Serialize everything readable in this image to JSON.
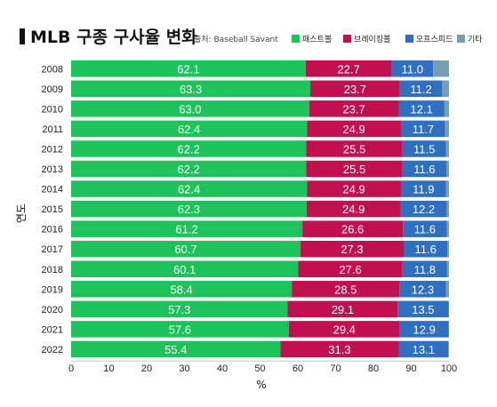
{
  "chart_data": {
    "type": "bar",
    "orientation": "horizontal",
    "stacked": true,
    "title": "MLB 구종 구사율 변화",
    "source": "출처: Baseball Savant",
    "ylabel": "연도",
    "xlabel": "%",
    "xlim": [
      0,
      100
    ],
    "xticks": [
      "0",
      "10",
      "20",
      "30",
      "40",
      "50",
      "60",
      "70",
      "80",
      "90",
      "100"
    ],
    "legend_position": "top-right",
    "categories": [
      "2008",
      "2009",
      "2010",
      "2011",
      "2012",
      "2013",
      "2014",
      "2015",
      "2016",
      "2017",
      "2018",
      "2019",
      "2020",
      "2021",
      "2022"
    ],
    "series": [
      {
        "name": "패스트볼",
        "color": "#1dc25a",
        "values": [
          62.1,
          63.3,
          63.0,
          62.4,
          62.2,
          62.2,
          62.4,
          62.3,
          61.2,
          60.7,
          60.1,
          58.4,
          57.3,
          57.6,
          55.4
        ],
        "labels": [
          "62.1",
          "63.3",
          "63.0",
          "62.4",
          "62.2",
          "62.2",
          "62.4",
          "62.3",
          "61.2",
          "60.7",
          "60.1",
          "58.4",
          "57.3",
          "57.6",
          "55.4"
        ]
      },
      {
        "name": "브레이킹볼",
        "color": "#c0104f",
        "values": [
          22.7,
          23.7,
          23.7,
          24.9,
          25.5,
          25.5,
          24.9,
          24.9,
          26.6,
          27.3,
          27.6,
          28.5,
          29.1,
          29.4,
          31.3
        ],
        "labels": [
          "22.7",
          "23.7",
          "23.7",
          "24.9",
          "25.5",
          "25.5",
          "24.9",
          "24.9",
          "26.6",
          "27.3",
          "27.6",
          "28.5",
          "29.1",
          "29.4",
          "31.3"
        ]
      },
      {
        "name": "오프스피드",
        "color": "#2f6fc0",
        "values": [
          11.0,
          11.2,
          12.1,
          11.7,
          11.5,
          11.6,
          11.9,
          12.2,
          11.6,
          11.6,
          11.8,
          12.3,
          13.5,
          12.9,
          13.1
        ],
        "labels": [
          "11.0",
          "11.2",
          "12.1",
          "11.7",
          "11.5",
          "11.6",
          "11.9",
          "12.2",
          "11.6",
          "11.6",
          "11.8",
          "12.3",
          "13.5",
          "12.9",
          "13.1"
        ]
      },
      {
        "name": "기타",
        "color": "#7a9eb1",
        "values": [
          4.2,
          1.8,
          1.2,
          1.0,
          0.8,
          0.7,
          0.8,
          0.6,
          0.6,
          0.4,
          0.5,
          0.8,
          0.1,
          0.1,
          0.2
        ],
        "labels": []
      }
    ]
  }
}
